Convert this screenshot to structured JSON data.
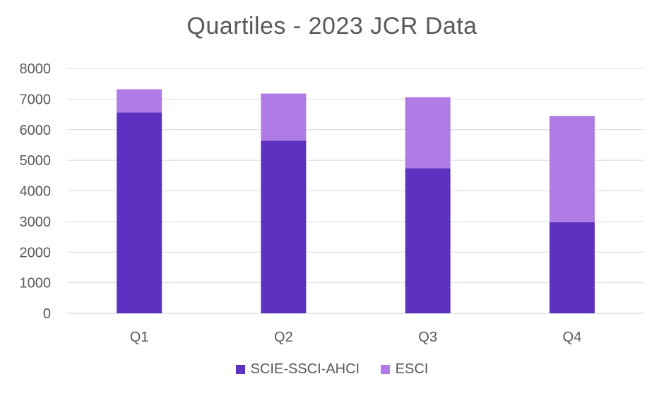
{
  "chart_data": {
    "type": "bar",
    "stacked": true,
    "title": "Quartiles - 2023 JCR Data",
    "categories": [
      "Q1",
      "Q2",
      "Q3",
      "Q4"
    ],
    "series": [
      {
        "name": "SCIE-SSCI-AHCI",
        "color": "#5e32c0",
        "values": [
          6560,
          5640,
          4740,
          2980
        ]
      },
      {
        "name": "ESCI",
        "color": "#b07be4",
        "values": [
          760,
          1540,
          2320,
          3470
        ]
      }
    ],
    "ylim": [
      0,
      8000
    ],
    "yticks": [
      0,
      1000,
      2000,
      3000,
      4000,
      5000,
      6000,
      7000,
      8000
    ],
    "grid": true,
    "legend": "bottom"
  }
}
